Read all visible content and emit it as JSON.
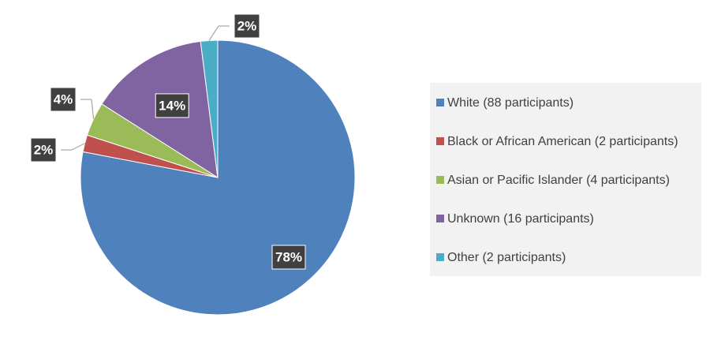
{
  "chart_data": {
    "type": "pie",
    "categories": [
      "White (88 participants)",
      "Black or African American (2 participants)",
      "Asian or Pacific Islander (4 participants)",
      "Unknown (16 participants)",
      "Other (2 participants)"
    ],
    "values": [
      78,
      2,
      4,
      14,
      2
    ],
    "value_labels": [
      "78%",
      "2%",
      "4%",
      "14%",
      "2%"
    ],
    "colors": [
      "#4f81bd",
      "#c0504d",
      "#9bbb59",
      "#8064a2",
      "#4bacc6"
    ],
    "legend": "right"
  }
}
